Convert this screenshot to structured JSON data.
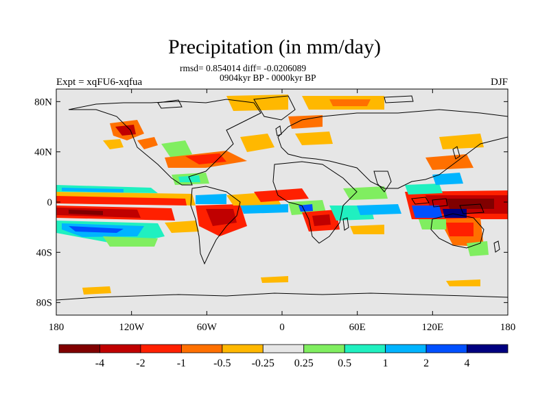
{
  "title": "Precipitation (in mm/day)",
  "stats_line": "rmsd= 0.854014 diff= -0.0206089",
  "period_line": "0904kyr BP - 0000kyr BP",
  "experiment": "Expt = xqFU6-xqfua",
  "season": "DJF",
  "map": {
    "projection": "cylindrical-equidistant",
    "lon_range": [
      -180,
      180
    ],
    "lat_range": [
      -90,
      90
    ],
    "background": "#e6e6e6",
    "y_axis_labels": [
      {
        "label": "80N",
        "lat": 80
      },
      {
        "label": "40N",
        "lat": 40
      },
      {
        "label": "0",
        "lat": 0
      },
      {
        "label": "40S",
        "lat": -40
      },
      {
        "label": "80S",
        "lat": -80
      }
    ],
    "x_axis_labels": [
      {
        "label": "180",
        "lon": -180
      },
      {
        "label": "120W",
        "lon": -120
      },
      {
        "label": "60W",
        "lon": -60
      },
      {
        "label": "0",
        "lon": 0
      },
      {
        "label": "60E",
        "lon": 60
      },
      {
        "label": "120E",
        "lon": 120
      },
      {
        "label": "180",
        "lon": 180
      }
    ]
  },
  "colorbar": {
    "colors": [
      "#800000",
      "#c00000",
      "#ff2000",
      "#ff7000",
      "#ffb800",
      "#e6e6e6",
      "#80ee60",
      "#20f0c0",
      "#00b4ff",
      "#0050ff",
      "#000080"
    ],
    "labels": [
      "-4",
      "-2",
      "-1",
      "-0.5",
      "-0.25",
      "0.25",
      "0.5",
      "1",
      "2",
      "4"
    ]
  }
}
